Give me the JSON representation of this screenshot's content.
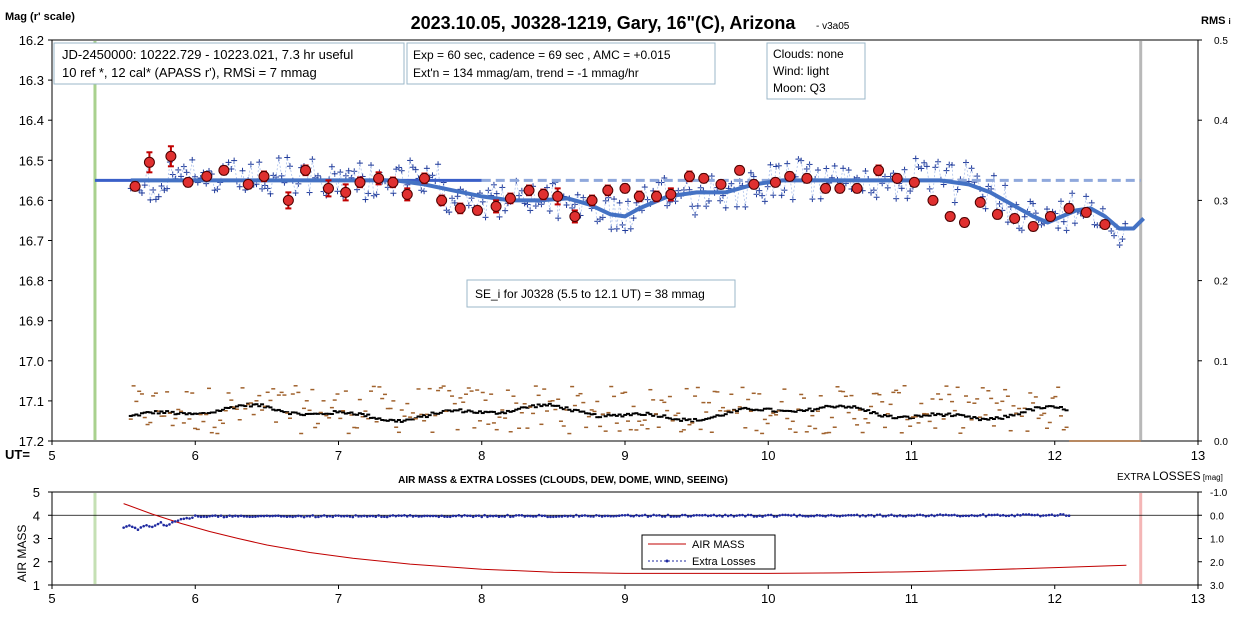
{
  "title": "2023.10.05, J0328-1219, Gary, 16\"(C), Arizona",
  "version": "- v3a05",
  "chart_data": [
    {
      "type": "scatter",
      "ylabel": "Mag (r' scale)",
      "y2label": "RMS",
      "y2label_suffix": "i",
      "xlabel": "UT=",
      "xlim": [
        5,
        13
      ],
      "ylim": [
        16.2,
        17.2
      ],
      "y_inverted": true,
      "y2lim": [
        0.0,
        0.5
      ],
      "x_ticks": [
        5,
        6,
        7,
        8,
        9,
        10,
        11,
        12,
        13
      ],
      "y_ticks": [
        "16.2",
        "16.3",
        "16.4",
        "16.5",
        "16.6",
        "16.7",
        "16.8",
        "16.9",
        "17.0",
        "17.1",
        "17.2"
      ],
      "y2_ticks": [
        "0.5",
        "0.4",
        "0.3",
        "0.2",
        "0.1",
        "0.0"
      ],
      "markers": {
        "start_ut": 5.3,
        "end_ut": 12.6
      },
      "reference_mag": 16.55,
      "annotations": {
        "box1": [
          "JD-2450000: 10222.729 - 10223.021, 7.3 hr useful",
          "10 ref *, 12 cal*  (APASS r'), RMSi = 7 mmag"
        ],
        "box2": [
          "Exp = 60 sec, cadence = 69 sec , AMC = +0.015",
          "Ext'n = 134 mmag/am, trend = -1 mmag/hr"
        ],
        "box3": [
          "Clouds: none",
          "Wind:  light",
          "Moon:  Q3"
        ],
        "box4": "SE_i for J0328 (5.5 to 12.1 UT) = 38 mmag"
      },
      "model_curve": {
        "x": [
          5.55,
          5.8,
          6.2,
          6.6,
          7.0,
          7.4,
          7.6,
          7.8,
          8.0,
          8.2,
          8.4,
          8.6,
          8.75,
          8.9,
          9.0,
          9.1,
          9.3,
          9.5,
          9.7,
          9.9,
          10.1,
          10.5,
          10.8,
          11.0,
          11.2,
          11.4,
          11.55,
          11.7,
          11.85,
          11.95,
          12.05,
          12.15,
          12.25,
          12.35,
          12.45,
          12.55,
          12.62
        ],
        "y": [
          16.55,
          16.55,
          16.55,
          16.55,
          16.55,
          16.55,
          16.56,
          16.575,
          16.59,
          16.6,
          16.6,
          16.595,
          16.61,
          16.635,
          16.64,
          16.62,
          16.59,
          16.58,
          16.58,
          16.56,
          16.55,
          16.55,
          16.55,
          16.55,
          16.55,
          16.56,
          16.58,
          16.61,
          16.64,
          16.655,
          16.64,
          16.625,
          16.62,
          16.64,
          16.67,
          16.67,
          16.645
        ]
      },
      "binned": {
        "x": [
          5.58,
          5.68,
          5.83,
          5.95,
          6.08,
          6.2,
          6.37,
          6.48,
          6.65,
          6.77,
          6.93,
          7.05,
          7.15,
          7.28,
          7.38,
          7.48,
          7.6,
          7.72,
          7.85,
          7.97,
          8.1,
          8.2,
          8.33,
          8.43,
          8.53,
          8.65,
          8.77,
          8.88,
          9.0,
          9.1,
          9.22,
          9.32,
          9.45,
          9.55,
          9.67,
          9.8,
          9.9,
          10.05,
          10.15,
          10.27,
          10.4,
          10.5,
          10.62,
          10.77,
          10.9,
          11.02,
          11.15,
          11.27,
          11.37,
          11.48,
          11.6,
          11.72,
          11.85,
          11.97,
          12.1,
          12.22,
          12.35
        ],
        "y": [
          16.565,
          16.505,
          16.49,
          16.555,
          16.54,
          16.525,
          16.56,
          16.54,
          16.6,
          16.525,
          16.57,
          16.58,
          16.555,
          16.545,
          16.555,
          16.585,
          16.545,
          16.6,
          16.62,
          16.625,
          16.615,
          16.595,
          16.575,
          16.585,
          16.59,
          16.64,
          16.6,
          16.575,
          16.57,
          16.59,
          16.59,
          16.585,
          16.54,
          16.545,
          16.56,
          16.525,
          16.56,
          16.555,
          16.54,
          16.545,
          16.57,
          16.57,
          16.57,
          16.525,
          16.545,
          16.555,
          16.6,
          16.64,
          16.655,
          16.605,
          16.635,
          16.645,
          16.665,
          16.64,
          16.62,
          16.63,
          16.66
        ],
        "err": [
          0.01,
          0.025,
          0.025,
          0.01,
          0.01,
          0.01,
          0.01,
          0.012,
          0.02,
          0.012,
          0.02,
          0.02,
          0.012,
          0.015,
          0.012,
          0.015,
          0.012,
          0.012,
          0.012,
          0.01,
          0.015,
          0.012,
          0.012,
          0.012,
          0.02,
          0.015,
          0.012,
          0.012,
          0.01,
          0.012,
          0.012,
          0.015,
          0.012,
          0.01,
          0.01,
          0.01,
          0.01,
          0.01,
          0.01,
          0.01,
          0.01,
          0.01,
          0.01,
          0.012,
          0.01,
          0.01,
          0.01,
          0.01,
          0.01,
          0.01,
          0.01,
          0.01,
          0.01,
          0.01,
          0.01,
          0.01,
          0.01
        ]
      }
    },
    {
      "type": "line",
      "title": "AIR MASS & EXTRA LOSSES (CLOUDS, DEW, DOME, WIND, SEEING)",
      "ylabel": "AIR MASS",
      "y2label_a": "EXTRA ",
      "y2label_b": "LOSSES",
      "y2label_unit": " [mag]",
      "xlim": [
        5,
        13
      ],
      "ylim": [
        1,
        5
      ],
      "y2lim": [
        3.0,
        -1.0
      ],
      "x_ticks": [
        5,
        6,
        7,
        8,
        9,
        10,
        11,
        12,
        13
      ],
      "y_ticks": [
        "1",
        "2",
        "3",
        "4",
        "5"
      ],
      "y2_ticks": [
        "-1.0",
        "0.0",
        "1.0",
        "2.0",
        "3.0"
      ],
      "markers": {
        "start_ut": 5.3,
        "end_ut": 12.6
      },
      "series": [
        {
          "name": "AIR MASS",
          "color": "#c00000",
          "x": [
            5.5,
            5.7,
            5.9,
            6.1,
            6.3,
            6.5,
            6.8,
            7.1,
            7.5,
            8.0,
            8.5,
            9.0,
            9.5,
            10.0,
            10.5,
            11.0,
            11.5,
            12.0,
            12.5
          ],
          "y": [
            4.5,
            4.05,
            3.65,
            3.3,
            3.0,
            2.72,
            2.4,
            2.15,
            1.9,
            1.68,
            1.55,
            1.5,
            1.5,
            1.5,
            1.52,
            1.57,
            1.65,
            1.75,
            1.85
          ]
        },
        {
          "name": "Extra Losses",
          "color": "#1f2aa0",
          "x": [
            5.5,
            5.55,
            5.6,
            5.65,
            5.7,
            5.75,
            5.8,
            5.85,
            5.9,
            6.0,
            12.1
          ],
          "y": [
            0.55,
            0.45,
            0.6,
            0.4,
            0.5,
            0.3,
            0.45,
            0.3,
            0.2,
            0.05,
            0.0
          ]
        }
      ]
    }
  ]
}
